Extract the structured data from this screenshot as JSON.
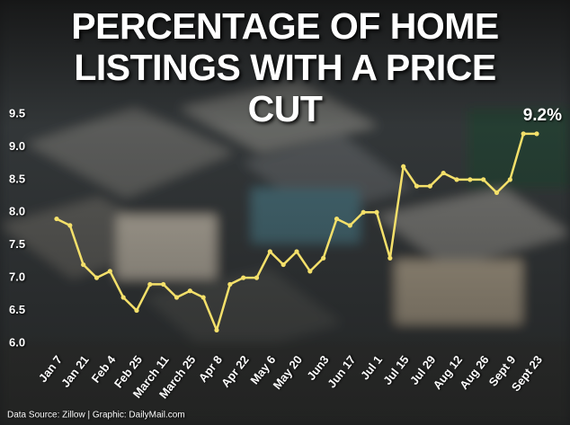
{
  "chart_data": {
    "type": "line",
    "title": "PERCENTAGE OF HOME LISTINGS WITH A PRICE CUT",
    "source": "Data Source: Zillow  |  Graphic: DailyMail.com",
    "categories": [
      "Jan 7",
      null,
      "Jan 21",
      null,
      "Feb 4",
      null,
      "Feb 25",
      null,
      "March 11",
      null,
      "March 25",
      null,
      "Apr 8",
      null,
      "Apr 22",
      null,
      "May 6",
      null,
      "May 20",
      null,
      "Jun3",
      null,
      "Jun 17",
      null,
      "Jul 1",
      null,
      "Jul 15",
      null,
      "Jul 29",
      null,
      "Aug 12",
      null,
      "Aug 26",
      null,
      "Sept 9",
      null,
      "Sept 23"
    ],
    "values": [
      7.9,
      7.8,
      7.2,
      7.0,
      7.1,
      6.7,
      6.5,
      6.9,
      6.9,
      6.7,
      6.8,
      6.7,
      6.2,
      6.9,
      7.0,
      7.0,
      7.4,
      7.2,
      7.4,
      7.1,
      7.3,
      7.9,
      7.8,
      8.0,
      8.0,
      7.3,
      8.7,
      8.4,
      8.4,
      8.6,
      8.5,
      8.5,
      8.5,
      8.3,
      8.5,
      9.2,
      9.2
    ],
    "value_labels": [
      null,
      null,
      null,
      null,
      null,
      null,
      null,
      null,
      null,
      null,
      null,
      null,
      null,
      null,
      null,
      null,
      null,
      null,
      null,
      null,
      null,
      null,
      null,
      null,
      null,
      null,
      null,
      null,
      null,
      null,
      null,
      null,
      null,
      null,
      null,
      null,
      "9.2%"
    ],
    "color": "#f4e06a",
    "ylim": [
      6.0,
      9.5
    ],
    "yticks": [
      {
        "value": 6,
        "label": "6.0"
      },
      6.5,
      {
        "value": 7,
        "label": "7.0"
      },
      7.5,
      {
        "value": 8,
        "label": "8.0"
      },
      8.5,
      {
        "value": 9,
        "label": "9.0"
      },
      9.5
    ],
    "grid": false
  }
}
